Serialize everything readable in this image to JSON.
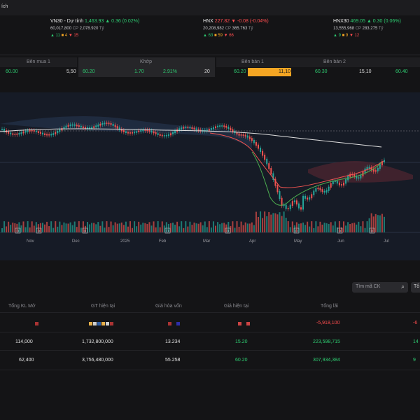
{
  "topbar": {
    "fragment": "ích"
  },
  "indices": [
    {
      "name": "VN30 - Dự tính",
      "value": "1,463.93",
      "change": "▲ 0.36 (0.02%)",
      "vol": "60,017,800",
      "vol_unit": "CP",
      "val": "2,078.920",
      "val_unit": "Tỷ",
      "up": "▲ 11",
      "flat": "■ 4",
      "down": "▼ 15",
      "dir": "up"
    },
    {
      "name": "HNX",
      "value": "227.82",
      "change": "▼ -0.08 (-0.04%)",
      "vol": "20,208,982",
      "vol_unit": "CP",
      "val": "365.763",
      "val_unit": "Tỷ",
      "up": "▲ 63",
      "flat": "■ 59",
      "down": "▼ 66",
      "dir": "down"
    },
    {
      "name": "HNX30",
      "value": "469.05",
      "change": "▲ 0.30 (0.06%)",
      "vol": "13,555,968",
      "vol_unit": "CP",
      "val": "283.275",
      "val_unit": "Tỷ",
      "up": "▲ 9",
      "flat": "■ 9",
      "down": "▼ 12",
      "dir": "up"
    }
  ],
  "order_book": {
    "headers": {
      "buy1": "Bên mua 1",
      "match": "Khớp",
      "sell1": "Bên bán 1",
      "sell2": "Bên bán 2"
    },
    "row": {
      "buy_price": "60.00",
      "buy_vol": "5,50",
      "match_price": "60.20",
      "match_change": "1.70",
      "match_pct": "2.91%",
      "match_vol": "20",
      "sell1_price": "60.20",
      "sell1_vol": "11,10",
      "sell2_price": "60.30",
      "sell2_vol": "15,10",
      "sell3_price": "60.40"
    }
  },
  "chart_data": {
    "type": "candlestick",
    "x_tick_labels": [
      "Nov",
      "Dec",
      "2025",
      "Feb",
      "Mar",
      "Apr",
      "May",
      "Jun",
      "Jul"
    ],
    "markers": [
      "D",
      "D",
      "D",
      "D",
      "D",
      "D",
      "D",
      "D"
    ],
    "colors": {
      "up": "#26a69a",
      "down": "#ef5350",
      "ma_long": "#e0e0e0",
      "ma_short": "#ef5350",
      "ma_mid": "#4caf50"
    }
  },
  "portfolio": {
    "search_placeholder": "Tìm mã CK",
    "search_icon": "search-icon",
    "tab_fragment": "Tổ",
    "headers": [
      "Tổng KL Mở",
      "GT hiện tại",
      "Giá hòa vốn",
      "Giá hiện tại",
      "Tổng lãi"
    ],
    "summary": {
      "total_profit": "-5,918,100",
      "right_fragment": "-6"
    },
    "rows": [
      {
        "qty": "114,000",
        "current_value": "1,732,800,000",
        "breakeven": "13.234",
        "price": "15.20",
        "profit": "223,598,715",
        "right": "14"
      },
      {
        "qty": "62,400",
        "current_value": "3,756,480,000",
        "breakeven": "55.258",
        "price": "60.20",
        "profit": "307,934,384",
        "right": "9"
      }
    ]
  }
}
